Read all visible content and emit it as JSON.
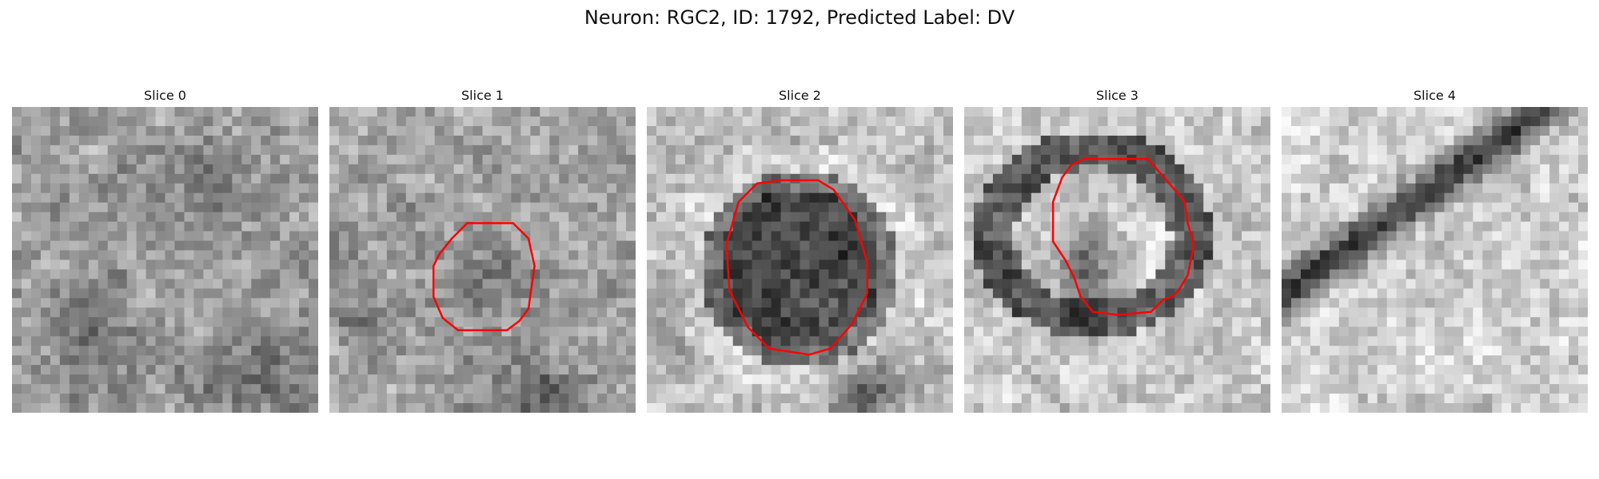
{
  "figure": {
    "title": "Neuron: RGC2, ID: 1792, Predicted Label: DV"
  },
  "panels": [
    {
      "title": "Slice 0",
      "contour": false
    },
    {
      "title": "Slice 1",
      "contour": true
    },
    {
      "title": "Slice 2",
      "contour": true
    },
    {
      "title": "Slice 3",
      "contour": true
    },
    {
      "title": "Slice 4",
      "contour": false
    }
  ],
  "colors": {
    "contour": "#ff0000",
    "colormap": "grayscale"
  }
}
